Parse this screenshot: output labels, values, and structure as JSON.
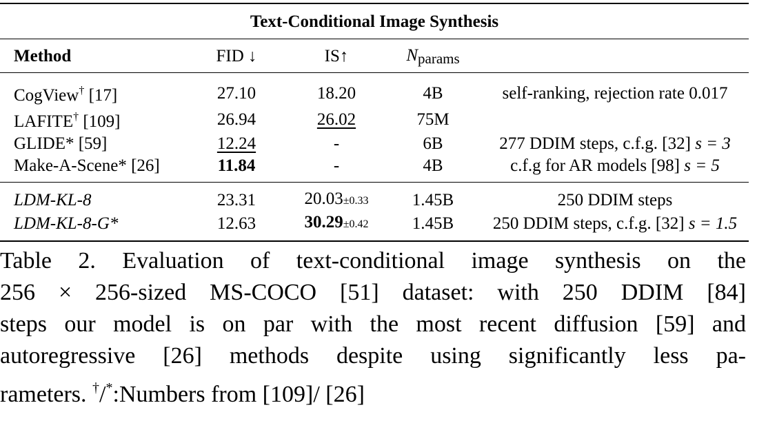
{
  "table": {
    "title": "Text-Conditional Image Synthesis",
    "headers": {
      "method": "Method",
      "fid": "FID ↓",
      "is": "IS↑",
      "nparams_n": "N",
      "nparams_sub": "params"
    },
    "rows": [
      {
        "method": "CogView",
        "method_mark": "†",
        "method_ref": " [17]",
        "fid": "27.10",
        "is": "18.20",
        "is_pm": "",
        "nparams": "4B",
        "note": "self-ranking, rejection rate 0.017"
      },
      {
        "method": "LAFITE",
        "method_mark": "†",
        "method_ref": " [109]",
        "fid": "26.94",
        "is": "26.02",
        "is_pm": "",
        "nparams": "75M",
        "note": ""
      },
      {
        "method": "GLIDE*",
        "method_mark": "",
        "method_ref": " [59]",
        "fid": "12.24",
        "is": "-",
        "is_pm": "",
        "nparams": "6B",
        "note_pre": "277 DDIM steps, c.f.g. ",
        "note_ref": "[32]",
        "note_math": " s = 3"
      },
      {
        "method": "Make-A-Scene*",
        "method_mark": "",
        "method_ref": " [26]",
        "fid": "11.84",
        "is": "-",
        "is_pm": "",
        "nparams": "4B",
        "note_pre": "c.f.g for AR models ",
        "note_ref": "[98]",
        "note_math": " s = 5"
      },
      {
        "method": "LDM-KL-8",
        "method_mark": "",
        "method_ref": "",
        "fid": "23.31",
        "is": "20.03",
        "is_pm": "±0.33",
        "nparams": "1.45B",
        "note": "250 DDIM steps"
      },
      {
        "method": "LDM-KL-8-G*",
        "method_mark": "",
        "method_ref": "",
        "fid": "12.63",
        "is": "30.29",
        "is_pm": "±0.42",
        "nparams": "1.45B",
        "note_pre": "250 DDIM steps, c.f.g. ",
        "note_ref": "[32]",
        "note_math": " s = 1.5"
      }
    ]
  },
  "caption": {
    "line1": "Table 2.   Evaluation of text-conditional image synthesis on the",
    "line2": "256 × 256-sized MS-COCO [51] dataset:  with 250 DDIM [84]",
    "line3": "steps our model is on par with the most recent diffusion [59] and",
    "line4": "autoregressive [26] methods despite using significantly less pa-",
    "line5_pre": "rameters. ",
    "line5_sup1": "†",
    "line5_mid": "/",
    "line5_sup2": "*",
    "line5_post": ":Numbers from [109]/ [26]"
  }
}
